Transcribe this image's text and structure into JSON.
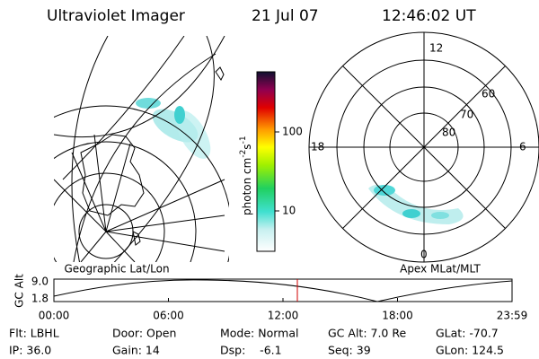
{
  "header": {
    "title": "Ultraviolet Imager",
    "date": "21 Jul 07",
    "time": "12:46:02 UT"
  },
  "left_panel": {
    "label": "Geographic Lat/Lon"
  },
  "right_panel": {
    "label": "Apex MLat/MLT",
    "mlt_labels": [
      "12",
      "18",
      "6",
      "0"
    ],
    "lat_labels": [
      "60",
      "70",
      "80"
    ]
  },
  "colorbar": {
    "label": "photon cm",
    "exp1": "-2",
    "unit2": "s",
    "exp2": "-1",
    "ticks": [
      "100",
      "10"
    ]
  },
  "altitude_plot": {
    "ylabel": "GC Alt",
    "yticks": [
      "9.0",
      "1.8"
    ],
    "xticks": [
      "00:00",
      "06:00",
      "12:00",
      "18:00",
      "23:59"
    ]
  },
  "footer": {
    "rows": [
      [
        "Flt: LBHL",
        "Door: Open",
        "Mode: Normal",
        "GC Alt: 7.0 Re",
        "GLat: -70.7"
      ],
      [
        "IP: 36.0",
        "Gain: 14",
        "Dsp:    -6.1",
        "Seq: 39",
        "GLon: 124.5"
      ]
    ]
  }
}
